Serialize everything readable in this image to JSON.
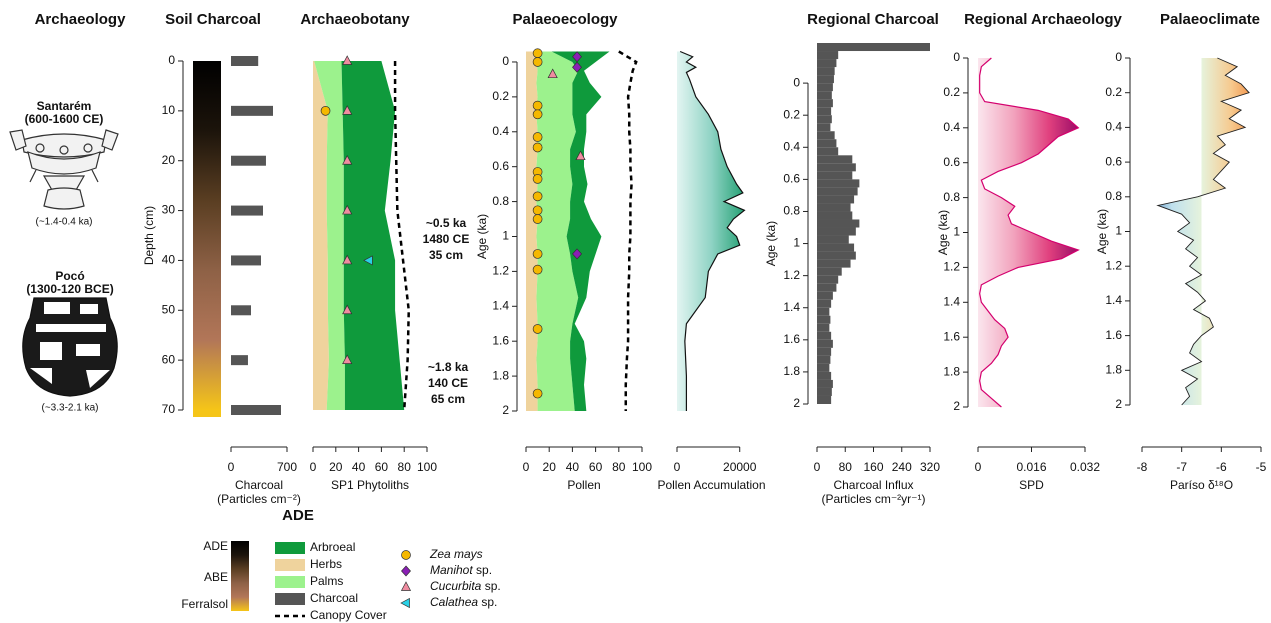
{
  "archaeology": {
    "title": "Archaeology",
    "vessels": [
      {
        "name": "Santarém",
        "period": "(600-1600 CE)",
        "age": "(~1.4-0.4 ka)"
      },
      {
        "name": "Pocó",
        "period": "(1300-120 BCE)",
        "age": "(~3.3-2.1 ka)"
      }
    ]
  },
  "chart_data": [
    {
      "type": "bar",
      "title": "Soil Charcoal",
      "ylabel": "Depth (cm)",
      "xlabel": [
        "Charcoal",
        "(Particles cm⁻²)"
      ],
      "depth": [
        0,
        10,
        20,
        30,
        40,
        50,
        60,
        70
      ],
      "series": [
        {
          "name": "Charcoal",
          "color": "#555555",
          "values": [
            340,
            525,
            437,
            400,
            375,
            250,
            212,
            625
          ]
        }
      ],
      "xlim": [
        0,
        700
      ],
      "xticks": [
        0,
        700
      ],
      "ylim": [
        0,
        70
      ],
      "yticks": [
        0,
        10,
        20,
        30,
        40,
        50,
        60,
        70
      ],
      "legend_title": "ADE",
      "soil_classes": [
        "ADE",
        "ABE",
        "Ferralsol"
      ],
      "soil_colors": [
        "#000000",
        "#1c140b",
        "#5a3e22",
        "#8e6146",
        "#b27658",
        "#f5c518"
      ]
    },
    {
      "type": "area",
      "title": "Archaeobotany",
      "xlabel": [
        "SP1 Phytoliths"
      ],
      "depth": [
        0,
        10,
        20,
        30,
        40,
        50,
        60,
        70
      ],
      "series": [
        {
          "name": "Herbs",
          "color": "#efd39d",
          "values": [
            1,
            13,
            12,
            12,
            13,
            13,
            14,
            12
          ]
        },
        {
          "name": "Palms",
          "color": "#9cf28d",
          "values": [
            24,
            13,
            15,
            15,
            14,
            14,
            14,
            16
          ]
        },
        {
          "name": "Arbroeal",
          "color": "#0f9a3c",
          "values": [
            35,
            46,
            41,
            36,
            45,
            45,
            48,
            52
          ]
        },
        {
          "name": "Canopy Cover",
          "color": "#000000",
          "style": "dashed",
          "values": [
            72,
            72,
            73,
            74,
            79,
            84,
            83,
            80
          ]
        }
      ],
      "markers": [
        {
          "name": "Zea mays",
          "color": "#f5b800",
          "shape": "circle",
          "x": [
            11
          ],
          "depth": [
            10
          ]
        },
        {
          "name": "Manihot sp.",
          "color": "#8a1fb5",
          "shape": "diamond",
          "x": [],
          "depth": []
        },
        {
          "name": "Cucurbita sp.",
          "color": "#f08ca0",
          "shape": "triangle",
          "x": [
            30,
            30,
            30,
            30,
            30,
            30,
            30
          ],
          "depth": [
            0,
            10,
            20,
            30,
            40,
            50,
            60
          ]
        },
        {
          "name": "Calathea sp.",
          "color": "#29d1e6",
          "shape": "triangle-left",
          "x": [
            49
          ],
          "depth": [
            40
          ]
        }
      ],
      "annotations": [
        {
          "lines": [
            "~0.5 ka",
            "1480 CE",
            "35 cm"
          ]
        },
        {
          "lines": [
            "~1.8 ka",
            "140 CE",
            "65 cm"
          ]
        }
      ],
      "xlim": [
        0,
        100
      ],
      "xticks": [
        0,
        20,
        40,
        60,
        80,
        100
      ],
      "ylim": [
        0,
        70
      ]
    },
    {
      "type": "area",
      "title": "Palaeoecology",
      "ylabel": "Age (ka)",
      "xlabel": [
        "Pollen"
      ],
      "age": [
        -0.06,
        0,
        0.05,
        0.12,
        0.2,
        0.3,
        0.4,
        0.5,
        0.6,
        0.7,
        0.8,
        0.9,
        1,
        1.1,
        1.2,
        1.35,
        1.5,
        1.6,
        1.7,
        1.85,
        2
      ],
      "series": [
        {
          "name": "Herbs",
          "color": "#efd39d",
          "values": [
            9,
            9,
            10,
            9,
            10,
            9,
            10,
            10,
            9,
            10,
            9,
            10,
            9,
            10,
            10,
            9,
            10,
            10,
            9,
            10,
            10
          ]
        },
        {
          "name": "Palms",
          "color": "#9cf28d",
          "values": [
            13,
            31,
            35,
            31,
            30,
            31,
            33,
            28,
            29,
            30,
            29,
            28,
            26,
            28,
            30,
            36,
            30,
            28,
            29,
            30,
            32
          ]
        },
        {
          "name": "Arbroeal",
          "color": "#0f9a3c",
          "values": [
            50,
            20,
            5,
            15,
            25,
            12,
            9,
            12,
            12,
            13,
            12,
            18,
            30,
            22,
            15,
            7,
            2,
            12,
            14,
            10,
            10
          ]
        },
        {
          "name": "Canopy Cover",
          "color": "#000000",
          "style": "dashed",
          "values": [
            80,
            95,
            92,
            90,
            88,
            89,
            89,
            90,
            90,
            91,
            90,
            90,
            90,
            89,
            89,
            88,
            88,
            88,
            87,
            86,
            86
          ]
        }
      ],
      "markers": [
        {
          "name": "Zea mays",
          "color": "#f5b800",
          "shape": "circle",
          "x": [
            10,
            10,
            10,
            10,
            10,
            10,
            10,
            10,
            10,
            10,
            10,
            10,
            10,
            10,
            10
          ],
          "age": [
            -0.05,
            0,
            0.25,
            0.3,
            0.43,
            0.49,
            0.63,
            0.67,
            0.77,
            0.85,
            0.9,
            1.1,
            1.19,
            1.53,
            1.9
          ]
        },
        {
          "name": "Manihot sp.",
          "color": "#8a1fb5",
          "shape": "diamond",
          "x": [
            44,
            44,
            44
          ],
          "age": [
            -0.03,
            0.03,
            1.1
          ]
        },
        {
          "name": "Cucurbita sp.",
          "color": "#f08ca0",
          "shape": "triangle",
          "x": [
            23,
            47
          ],
          "age": [
            0.07,
            0.54
          ]
        }
      ],
      "xlim": [
        0,
        100
      ],
      "xticks": [
        0,
        20,
        40,
        60,
        80,
        100
      ],
      "ylim": [
        -0.06,
        2
      ],
      "yticks": [
        0,
        0.2,
        0.4,
        0.6,
        0.8,
        1,
        1.2,
        1.4,
        1.6,
        1.8,
        2
      ]
    },
    {
      "type": "area",
      "xlabel": [
        "Pollen Accumulation"
      ],
      "age": [
        -0.06,
        -0.03,
        0,
        0.03,
        0.06,
        0.1,
        0.2,
        0.3,
        0.4,
        0.5,
        0.6,
        0.7,
        0.75,
        0.8,
        0.85,
        0.9,
        0.95,
        1,
        1.05,
        1.1,
        1.2,
        1.35,
        1.5,
        1.6,
        1.8,
        2
      ],
      "series": [
        {
          "name": "Pollen Accumulation",
          "color": "#5cbfa6",
          "gradient": [
            "#e3f5f2",
            "#8fd3c4",
            "#1f9e70"
          ],
          "line_color": "#111111",
          "values": [
            1000,
            5000,
            3000,
            6000,
            3000,
            4000,
            6000,
            10000,
            13000,
            14000,
            16000,
            19000,
            21000,
            15000,
            21500,
            18000,
            16000,
            19000,
            20000,
            13000,
            10000,
            9000,
            3000,
            2500,
            3000,
            3000
          ]
        }
      ],
      "xlim": [
        0,
        22000
      ],
      "xticks": [
        0,
        20000
      ],
      "ylim": [
        -0.06,
        2
      ]
    },
    {
      "type": "histogram",
      "title": "Regional Charcoal",
      "ylabel": "Age (ka)",
      "xlabel": [
        "Charcoal Influx",
        "(Particles cm⁻²yr⁻¹)"
      ],
      "color": "#555555",
      "bins": [
        -0.25,
        -0.2,
        -0.15,
        -0.1,
        -0.05,
        0,
        0.05,
        0.1,
        0.15,
        0.2,
        0.25,
        0.3,
        0.35,
        0.4,
        0.45,
        0.5,
        0.55,
        0.6,
        0.65,
        0.7,
        0.75,
        0.8,
        0.85,
        0.9,
        0.95,
        1,
        1.05,
        1.1,
        1.15,
        1.2,
        1.25,
        1.3,
        1.35,
        1.4,
        1.45,
        1.5,
        1.55,
        1.6,
        1.65,
        1.7,
        1.75,
        1.8,
        1.85,
        1.9,
        1.95,
        2
      ],
      "values": [
        320,
        60,
        55,
        50,
        48,
        45,
        42,
        45,
        40,
        42,
        38,
        50,
        55,
        60,
        100,
        110,
        100,
        120,
        115,
        105,
        95,
        100,
        120,
        110,
        90,
        105,
        110,
        95,
        70,
        60,
        55,
        45,
        40,
        35,
        38,
        35,
        40,
        45,
        40,
        38,
        35,
        40,
        45,
        42,
        40
      ],
      "xlim": [
        0,
        320
      ],
      "xticks": [
        0,
        80,
        160,
        240,
        320
      ],
      "ylim": [
        -0.25,
        2
      ],
      "yticks": [
        0,
        0.2,
        0.4,
        0.6,
        0.8,
        1,
        1.2,
        1.4,
        1.6,
        1.8,
        2
      ]
    },
    {
      "type": "area",
      "title": "Regional Archaeology",
      "ylabel": "Age (ka)",
      "xlabel": [
        "SPD"
      ],
      "age": [
        0,
        0.05,
        0.1,
        0.15,
        0.2,
        0.25,
        0.3,
        0.35,
        0.4,
        0.45,
        0.5,
        0.55,
        0.6,
        0.65,
        0.7,
        0.75,
        0.8,
        0.85,
        0.9,
        0.95,
        1,
        1.05,
        1.1,
        1.15,
        1.2,
        1.25,
        1.3,
        1.35,
        1.4,
        1.45,
        1.5,
        1.55,
        1.6,
        1.65,
        1.7,
        1.75,
        1.8,
        1.85,
        1.9,
        1.95,
        2
      ],
      "series": [
        {
          "name": "SPD",
          "color": "#e8407a",
          "gradient": [
            "#fbe6ee",
            "#f2a3bd",
            "#e0407e",
            "#8a0062"
          ],
          "line_color": "#d4006e",
          "values": [
            0.004,
            0.001,
            0.0005,
            0.0005,
            0.0005,
            0.002,
            0.018,
            0.027,
            0.03,
            0.024,
            0.021,
            0.018,
            0.013,
            0.006,
            0.001,
            0.002,
            0.007,
            0.011,
            0.009,
            0.01,
            0.016,
            0.022,
            0.03,
            0.025,
            0.012,
            0.006,
            0.001,
            0.0005,
            0.001,
            0.003,
            0.005,
            0.008,
            0.009,
            0.007,
            0.006,
            0.004,
            0.001,
            0.0005,
            0.001,
            0.004,
            0.007
          ]
        }
      ],
      "xlim": [
        0,
        0.032
      ],
      "xticks": [
        0,
        0.016,
        0.032
      ],
      "ylim": [
        0,
        2
      ],
      "yticks": [
        0,
        0.2,
        0.4,
        0.6,
        0.8,
        1,
        1.2,
        1.4,
        1.6,
        1.8,
        2
      ]
    },
    {
      "type": "line",
      "title": "Palaeoclimate",
      "ylabel": "Age (ka)",
      "xlabel": [
        "Paríso δ¹⁸O"
      ],
      "age": [
        0,
        0.05,
        0.1,
        0.15,
        0.2,
        0.25,
        0.3,
        0.35,
        0.4,
        0.45,
        0.5,
        0.55,
        0.6,
        0.65,
        0.7,
        0.75,
        0.8,
        0.85,
        0.9,
        0.95,
        1,
        1.05,
        1.1,
        1.15,
        1.2,
        1.25,
        1.3,
        1.35,
        1.4,
        1.45,
        1.5,
        1.55,
        1.6,
        1.65,
        1.7,
        1.75,
        1.8,
        1.85,
        1.9,
        1.95,
        2
      ],
      "values": [
        -6.1,
        -5.6,
        -5.9,
        -5.5,
        -5.3,
        -6,
        -5.5,
        -5.8,
        -5.4,
        -6.1,
        -5.9,
        -6.2,
        -5.8,
        -6,
        -6.2,
        -5.9,
        -6.6,
        -7.6,
        -7,
        -6.8,
        -7.1,
        -6.7,
        -6.9,
        -6.6,
        -6.8,
        -6.5,
        -6.9,
        -6.6,
        -6.4,
        -6.7,
        -6.3,
        -6.2,
        -6.5,
        -6.7,
        -6.8,
        -6.5,
        -7,
        -6.6,
        -6.9,
        -6.8,
        -7
      ],
      "color": "#222222",
      "fill_baseline": -6.5,
      "gradient": [
        "#2f6fb0",
        "#bfe0ee",
        "#e6f3dc",
        "#f6c98e",
        "#f07a2a"
      ],
      "xlim": [
        -8,
        -5
      ],
      "xticks": [
        -8,
        -7,
        -6,
        -5
      ],
      "ylim": [
        0,
        2
      ],
      "yticks": [
        0,
        0.2,
        0.4,
        0.6,
        0.8,
        1,
        1.2,
        1.4,
        1.6,
        1.8,
        2
      ]
    }
  ]
}
